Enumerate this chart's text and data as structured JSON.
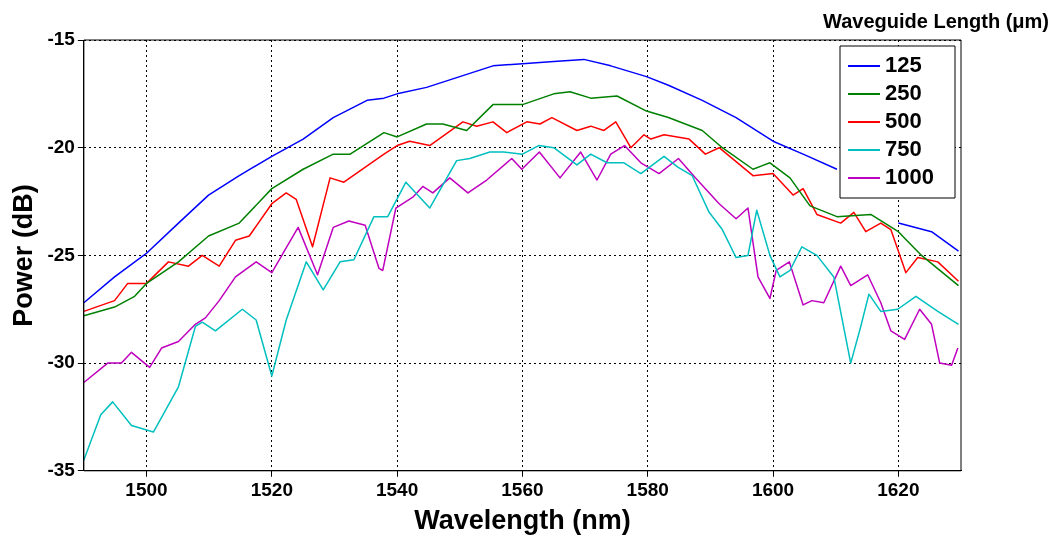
{
  "chart_data": {
    "type": "line",
    "xlabel": "Wavelength (nm)",
    "ylabel": "Power (dB)",
    "legend_title": "Waveguide Length (μm)",
    "xlim": [
      1490,
      1630
    ],
    "xticks": [
      1500,
      1520,
      1540,
      1560,
      1580,
      1600,
      1620
    ],
    "ylim": [
      -35,
      -15
    ],
    "yticks": [
      -35,
      -30,
      -25,
      -20,
      -15
    ],
    "grid": true,
    "legend": "top right",
    "marker": "none",
    "line_style": "solid",
    "series": [
      {
        "name": "125",
        "color": "#0000ff",
        "x": [
          1490,
          1494.9,
          1500,
          1505.1,
          1509.9,
          1514.8,
          1520,
          1525,
          1529.8,
          1535.2,
          1537.9,
          1540,
          1544.7,
          1550,
          1555.3,
          1560,
          1565,
          1569.8,
          1574.1,
          1579.8,
          1583.3,
          1588.7,
          1594.1,
          1600,
          1604.8,
          1610.2,
          1616.7,
          1620,
          1625.3,
          1629.6
        ],
        "values": [
          -27.2,
          -26.0,
          -24.9,
          -23.5,
          -22.2,
          -21.3,
          -20.4,
          -19.6,
          -18.6,
          -17.8,
          -17.7,
          -17.5,
          -17.2,
          -16.7,
          -16.2,
          -16.1,
          -16.0,
          -15.9,
          -16.2,
          -16.7,
          -17.1,
          -17.8,
          -18.6,
          -19.7,
          -20.3,
          -21.0,
          null,
          -23.5,
          -23.9,
          -24.8
        ]
      },
      {
        "name": "250",
        "color": "#008000",
        "x": [
          1490,
          1494.9,
          1498.1,
          1500,
          1505.1,
          1509.9,
          1514.8,
          1520,
          1525,
          1529.8,
          1532.5,
          1537.9,
          1540,
          1544.7,
          1547.3,
          1551.1,
          1555.3,
          1560,
          1565,
          1567.6,
          1570.9,
          1575.1,
          1579.8,
          1583.3,
          1588.7,
          1591.9,
          1596.8,
          1599.5,
          1602.7,
          1605.9,
          1610.2,
          1615.6,
          1620,
          1623.7,
          1629.6
        ],
        "values": [
          -27.8,
          -27.4,
          -26.9,
          -26.3,
          -25.3,
          -24.1,
          -23.5,
          -21.9,
          -21.0,
          -20.3,
          -20.3,
          -19.3,
          -19.5,
          -18.9,
          -18.9,
          -19.2,
          -18.0,
          -18.0,
          -17.5,
          -17.4,
          -17.7,
          -17.6,
          -18.3,
          -18.6,
          -19.2,
          -20.0,
          -21.0,
          -20.7,
          -21.4,
          -22.7,
          -23.2,
          -23.1,
          -23.9,
          -25.0,
          -26.4
        ]
      },
      {
        "name": "500",
        "color": "#ff0000",
        "x": [
          1490,
          1494.9,
          1497,
          1500,
          1503.5,
          1506.7,
          1508.9,
          1511.6,
          1514.2,
          1516.4,
          1520,
          1522.3,
          1523.9,
          1526.5,
          1529.3,
          1531.5,
          1537.9,
          1540,
          1542,
          1545.2,
          1550.5,
          1552.7,
          1555.3,
          1557.5,
          1560.7,
          1562.8,
          1564.7,
          1568.7,
          1570.9,
          1573,
          1574.9,
          1577.3,
          1579.4,
          1580.5,
          1582.6,
          1586.6,
          1589.2,
          1591.4,
          1596.8,
          1600,
          1603.2,
          1604.8,
          1607,
          1610.8,
          1612.9,
          1614.8,
          1617.2,
          1618.8,
          1621.2,
          1623.1,
          1626.3,
          1629.6
        ],
        "values": [
          -27.6,
          -27.1,
          -26.3,
          -26.3,
          -25.3,
          -25.5,
          -25.0,
          -25.5,
          -24.3,
          -24.1,
          -22.6,
          -22.1,
          -22.4,
          -24.6,
          -21.4,
          -21.6,
          -20.3,
          -19.9,
          -19.7,
          -19.9,
          -18.8,
          -19.0,
          -18.8,
          -19.3,
          -18.8,
          -18.9,
          -18.6,
          -19.2,
          -19.0,
          -19.2,
          -18.8,
          -20.0,
          -19.4,
          -19.6,
          -19.4,
          -19.6,
          -20.3,
          -20.0,
          -21.3,
          -21.2,
          -22.2,
          -21.9,
          -23.1,
          -23.5,
          -23.0,
          -23.9,
          -23.5,
          -23.8,
          -25.8,
          -25.1,
          -25.3,
          -26.2
        ]
      },
      {
        "name": "750",
        "color": "#00bfbf",
        "x": [
          1490,
          1492.7,
          1494.6,
          1497.6,
          1501.1,
          1505.1,
          1507.8,
          1508.9,
          1511,
          1515.3,
          1517.5,
          1520,
          1522.3,
          1525.5,
          1528.2,
          1530.9,
          1533.1,
          1536.3,
          1538.5,
          1541.4,
          1545.2,
          1549.5,
          1551.6,
          1554.8,
          1557,
          1560,
          1562.6,
          1565,
          1568.7,
          1570.9,
          1573.5,
          1576.2,
          1578.9,
          1582.6,
          1584.8,
          1587.1,
          1589.8,
          1591.9,
          1594.1,
          1596,
          1597.4,
          1599.5,
          1601.1,
          1602.7,
          1604.6,
          1607,
          1609.7,
          1612.4,
          1614,
          1615.3,
          1617.2,
          1619.9,
          1622.8,
          1626.3,
          1629.6
        ],
        "values": [
          -34.5,
          -32.4,
          -31.8,
          -32.9,
          -33.2,
          -31.1,
          -28.3,
          -28.1,
          -28.5,
          -27.5,
          -28.0,
          -30.6,
          -28.0,
          -25.3,
          -26.6,
          -25.3,
          -25.2,
          -23.2,
          -23.2,
          -21.6,
          -22.8,
          -20.6,
          -20.5,
          -20.2,
          -20.2,
          -20.3,
          -19.9,
          -20.0,
          -20.8,
          -20.3,
          -20.7,
          -20.7,
          -21.2,
          -20.4,
          -20.9,
          -21.3,
          -23.0,
          -23.8,
          -25.1,
          -25.0,
          -22.9,
          -25.0,
          -26.0,
          -25.7,
          -24.6,
          -25.0,
          -26.0,
          -30.0,
          -28.3,
          -26.8,
          -27.6,
          -27.5,
          -26.9,
          -27.6,
          -28.2
        ]
      },
      {
        "name": "1000",
        "color": "#bf00bf",
        "x": [
          1490,
          1493.8,
          1496,
          1497.6,
          1500.5,
          1502.4,
          1505.1,
          1507.8,
          1509.4,
          1511.6,
          1514.2,
          1517.5,
          1520,
          1521.8,
          1524.2,
          1527.3,
          1529.8,
          1532.3,
          1534.9,
          1537.1,
          1537.7,
          1539.8,
          1542.5,
          1544.1,
          1545.7,
          1548.4,
          1551.3,
          1554.3,
          1558.3,
          1559.9,
          1562.7,
          1566,
          1569.3,
          1571.9,
          1574.1,
          1576.3,
          1578.9,
          1581.8,
          1584.9,
          1587.6,
          1591.4,
          1594.1,
          1596,
          1597.6,
          1599.5,
          1600.5,
          1602.6,
          1604.8,
          1606.2,
          1608.1,
          1610.8,
          1612.4,
          1615.1,
          1617.2,
          1618.8,
          1621,
          1623.4,
          1625.3,
          1626.6,
          1628.5,
          1629.5
        ],
        "values": [
          -30.9,
          -30.0,
          -30.0,
          -29.5,
          -30.2,
          -29.3,
          -29.0,
          -28.2,
          -27.9,
          -27.1,
          -26.0,
          -25.3,
          -25.8,
          -24.9,
          -23.7,
          -25.9,
          -23.7,
          -23.4,
          -23.6,
          -25.6,
          -25.7,
          -22.8,
          -22.3,
          -21.8,
          -22.1,
          -21.4,
          -22.1,
          -21.5,
          -20.5,
          -21.0,
          -20.2,
          -21.4,
          -20.2,
          -21.5,
          -20.3,
          -19.9,
          -20.7,
          -21.2,
          -20.5,
          -21.4,
          -22.6,
          -23.3,
          -22.8,
          -26.0,
          -27.0,
          -25.7,
          -25.3,
          -27.3,
          -27.1,
          -27.2,
          -25.5,
          -26.4,
          -25.9,
          -27.2,
          -28.5,
          -28.9,
          -27.5,
          -28.2,
          -30.0,
          -30.1,
          -29.3
        ]
      }
    ]
  }
}
